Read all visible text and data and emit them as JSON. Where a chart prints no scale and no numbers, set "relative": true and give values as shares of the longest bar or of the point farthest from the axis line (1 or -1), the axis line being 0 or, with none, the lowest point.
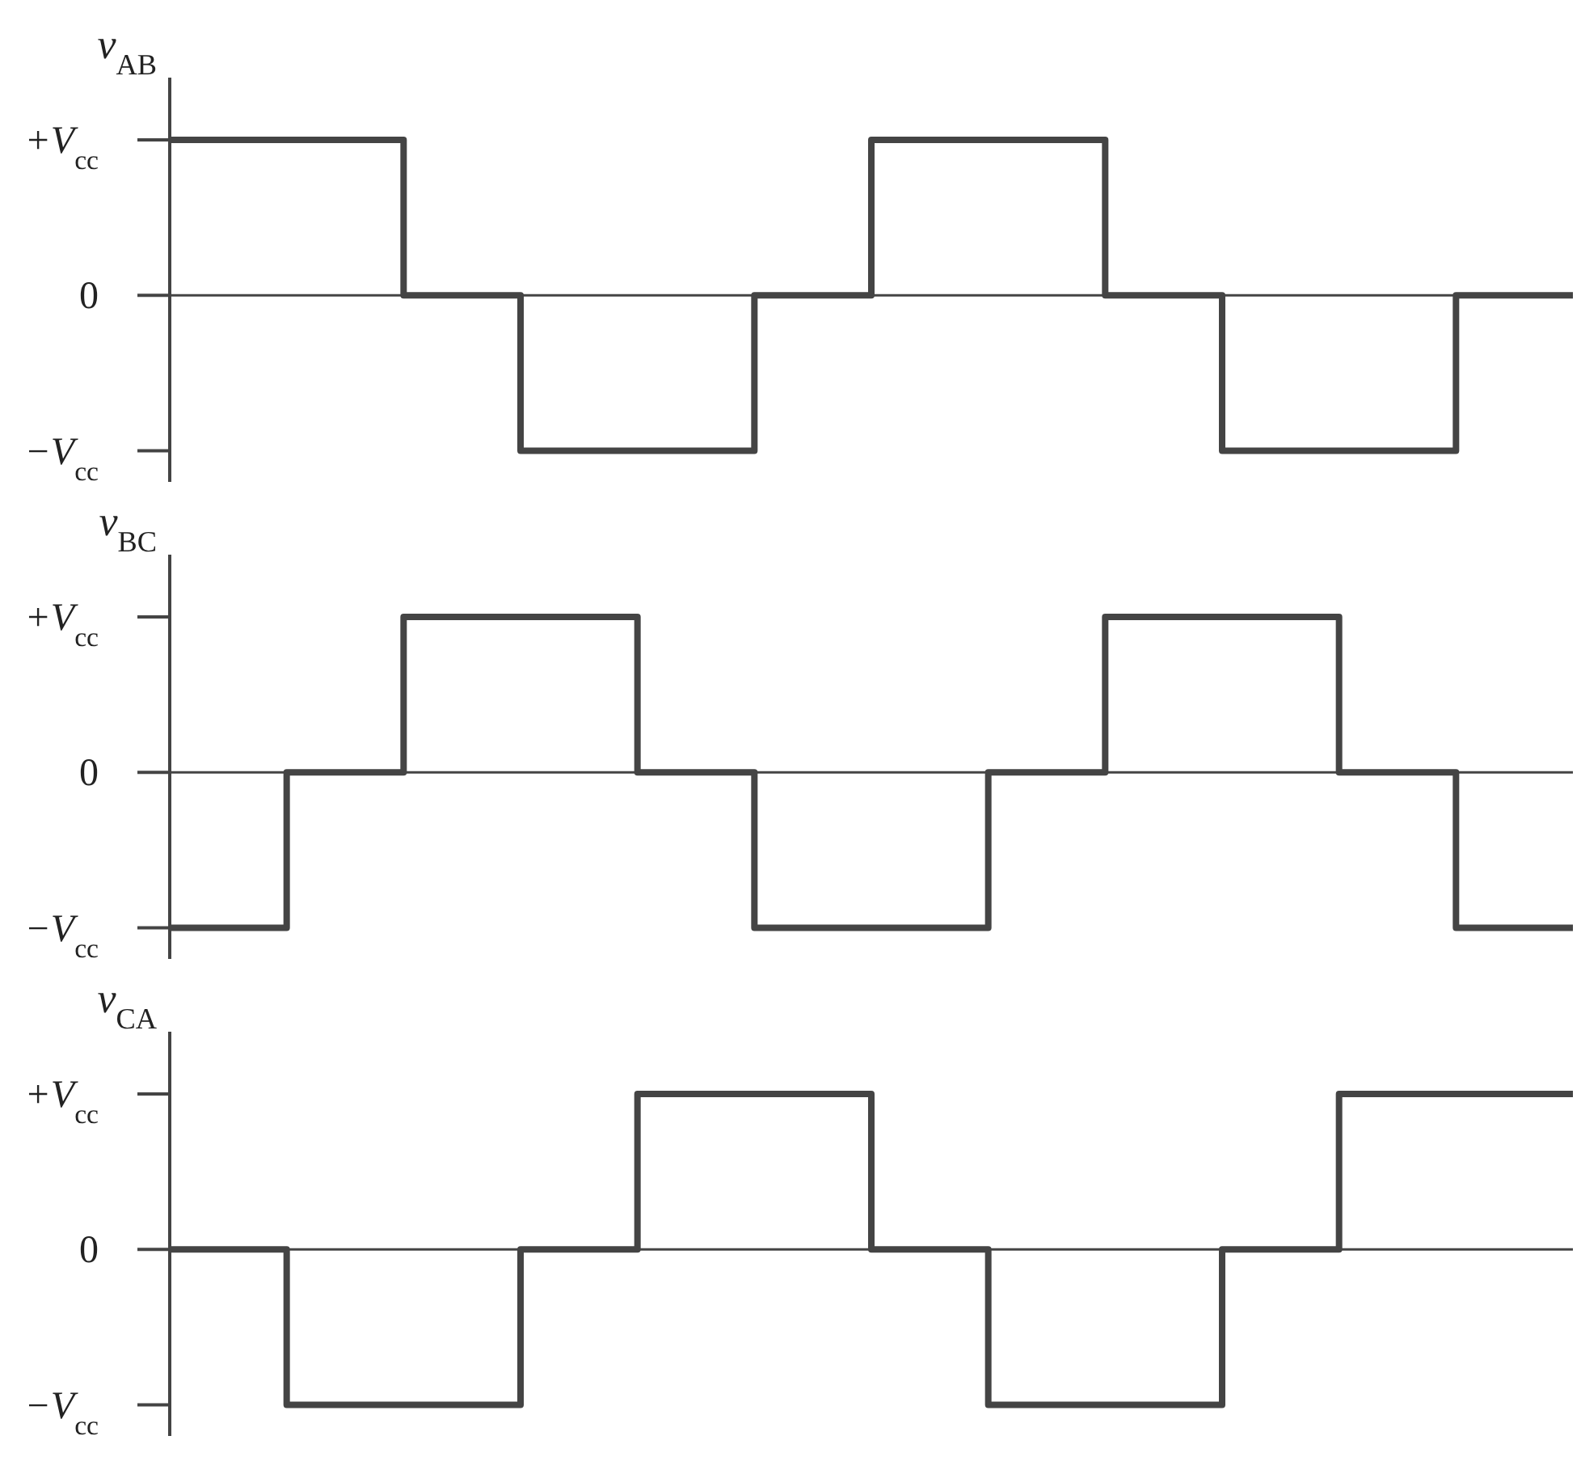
{
  "chart_data": [
    {
      "type": "step",
      "relative": true,
      "ylabel": "v$_{AB}$",
      "categories": [
        null,
        null,
        null,
        null,
        null,
        null,
        null,
        null,
        null,
        null,
        null,
        null,
        null
      ],
      "tick_labels": "y",
      "annotations": [
        "+V$_{cc}$",
        "0",
        "−V$_{cc}$"
      ],
      "ref_lines": [
        {
          "axis": "y",
          "value": 0,
          "color": "#444444"
        }
      ],
      "series": [
        {
          "color": "#444444",
          "values": [
            1,
            1,
            0,
            -1,
            -1,
            0,
            1,
            1,
            0,
            -1,
            -1,
            0,
            0
          ]
        }
      ]
    },
    {
      "type": "step",
      "relative": true,
      "ylabel": "v$_{BC}$",
      "categories": [
        null,
        null,
        null,
        null,
        null,
        null,
        null,
        null,
        null,
        null,
        null,
        null,
        null
      ],
      "tick_labels": "y",
      "annotations": [
        "+V$_{cc}$",
        "0",
        "−V$_{cc}$"
      ],
      "ref_lines": [
        {
          "axis": "y",
          "value": 0,
          "color": "#444444"
        }
      ],
      "series": [
        {
          "color": "#444444",
          "values": [
            -1,
            0,
            1,
            1,
            0,
            -1,
            -1,
            0,
            1,
            1,
            0,
            -1,
            -1
          ]
        }
      ]
    },
    {
      "type": "step",
      "relative": true,
      "ylabel": "v$_{CA}$",
      "categories": [
        null,
        null,
        null,
        null,
        null,
        null,
        null,
        null,
        null,
        null,
        null,
        null,
        null
      ],
      "tick_labels": "y",
      "annotations": [
        "+V$_{cc}$",
        "0",
        "−V$_{cc}$"
      ],
      "ref_lines": [
        {
          "axis": "y",
          "value": 0,
          "color": "#444444"
        }
      ],
      "series": [
        {
          "color": "#444444",
          "values": [
            0,
            -1,
            -1,
            0,
            1,
            1,
            0,
            -1,
            -1,
            0,
            1,
            1,
            1
          ]
        }
      ]
    }
  ]
}
